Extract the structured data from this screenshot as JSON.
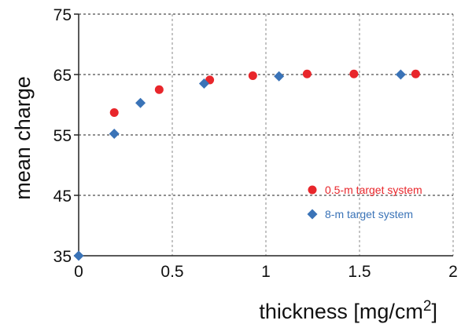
{
  "chart_data": {
    "type": "scatter",
    "xlabel": "thickness [mg/cm",
    "xlabel_sup": "2",
    "xlabel_close": "]",
    "ylabel": "mean charge",
    "xlim": [
      0,
      2
    ],
    "ylim": [
      35,
      75
    ],
    "x_ticks": [
      0,
      0.5,
      1,
      1.5,
      2
    ],
    "y_ticks": [
      35,
      45,
      55,
      65,
      75
    ],
    "x_tick_labels": [
      "0",
      "0.5",
      "1",
      "1.5",
      "2"
    ],
    "y_tick_labels": [
      "35",
      "45",
      "55",
      "65",
      "75"
    ],
    "grid": true,
    "legend_position": "lower-right",
    "series": [
      {
        "name": "0.5-m target system",
        "marker": "circle",
        "color": "#e8262b",
        "points": [
          {
            "x": 0.19,
            "y": 58.7
          },
          {
            "x": 0.43,
            "y": 62.5
          },
          {
            "x": 0.7,
            "y": 64.1
          },
          {
            "x": 0.93,
            "y": 64.8
          },
          {
            "x": 1.22,
            "y": 65.1
          },
          {
            "x": 1.47,
            "y": 65.1
          },
          {
            "x": 1.8,
            "y": 65.1
          }
        ]
      },
      {
        "name": "8-m target system",
        "marker": "diamond",
        "color": "#3a73b7",
        "points": [
          {
            "x": 0.0,
            "y": 35.0
          },
          {
            "x": 0.19,
            "y": 55.2
          },
          {
            "x": 0.33,
            "y": 60.3
          },
          {
            "x": 0.67,
            "y": 63.5
          },
          {
            "x": 1.07,
            "y": 64.7
          },
          {
            "x": 1.72,
            "y": 65.0
          }
        ]
      }
    ]
  }
}
